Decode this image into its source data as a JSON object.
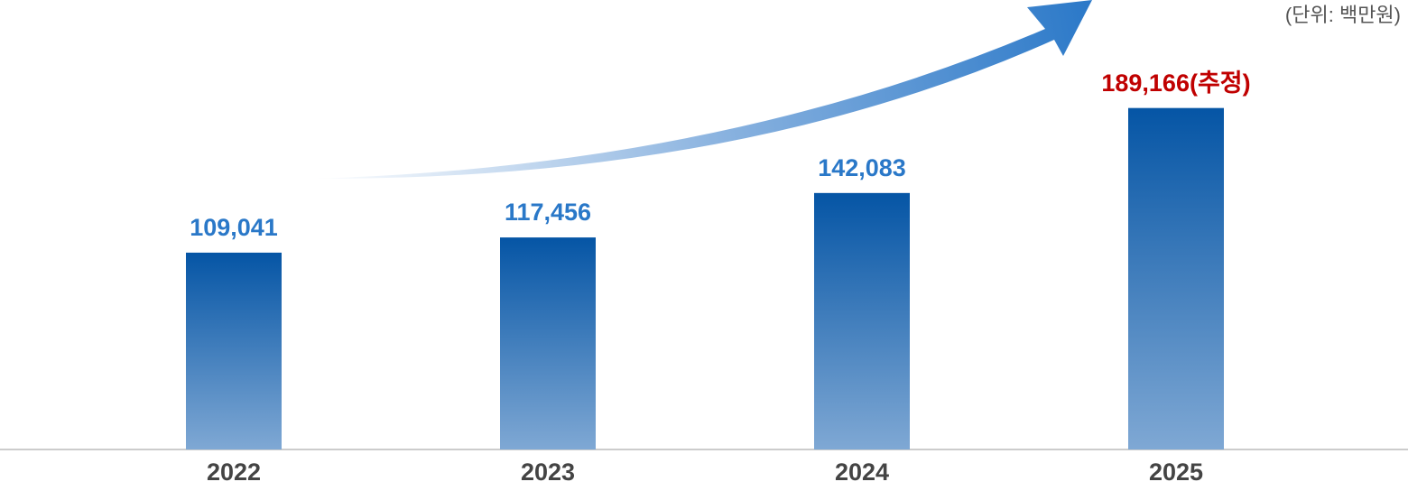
{
  "chart_data": {
    "type": "bar",
    "unit_note": "(단위: 백만원)",
    "categories": [
      "2022",
      "2023",
      "2024",
      "2025"
    ],
    "values": [
      109041,
      117456,
      142083,
      189166
    ],
    "value_labels": [
      "109,041",
      "117,456",
      "142,083",
      "189,166(추정)"
    ],
    "value_label_colors": [
      "#2a78c8",
      "#2a78c8",
      "#2a78c8",
      "#c00000"
    ],
    "color": "#0555a5",
    "ylim": [
      0,
      200000
    ]
  }
}
